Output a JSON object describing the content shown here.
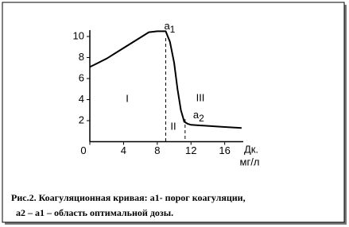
{
  "chart_data": {
    "type": "line",
    "x": [
      0,
      1,
      2,
      3,
      4,
      5,
      6,
      7,
      8,
      9,
      9.5,
      10,
      10.4,
      10.8,
      11.2,
      11.6,
      12,
      14,
      16,
      18
    ],
    "values": [
      7.1,
      7.5,
      7.9,
      8.4,
      8.9,
      9.4,
      9.9,
      10.4,
      10.5,
      10.5,
      9.5,
      7.5,
      5,
      3,
      1.9,
      1.7,
      1.6,
      1.5,
      1.4,
      1.3
    ],
    "color": "#000000",
    "xlim": [
      0,
      18.2
    ],
    "xticks": [
      0,
      4,
      8,
      12,
      16
    ],
    "ylim": [
      0,
      10.6
    ],
    "yticks": [
      2,
      4,
      6,
      8,
      10
    ],
    "x_label": "Дк.",
    "x_unit": "мг/л",
    "markers": [
      {
        "label": "a",
        "sub": "1",
        "x": 9
      },
      {
        "label": "a",
        "sub": "2",
        "x": 11.3
      }
    ],
    "regions": [
      "I",
      "II",
      "III"
    ],
    "caption": [
      "Рис.2. Коагуляционная кривая:  а1- порог коагуляции,",
      "а2 – а1 – область оптимальной дозы."
    ]
  }
}
